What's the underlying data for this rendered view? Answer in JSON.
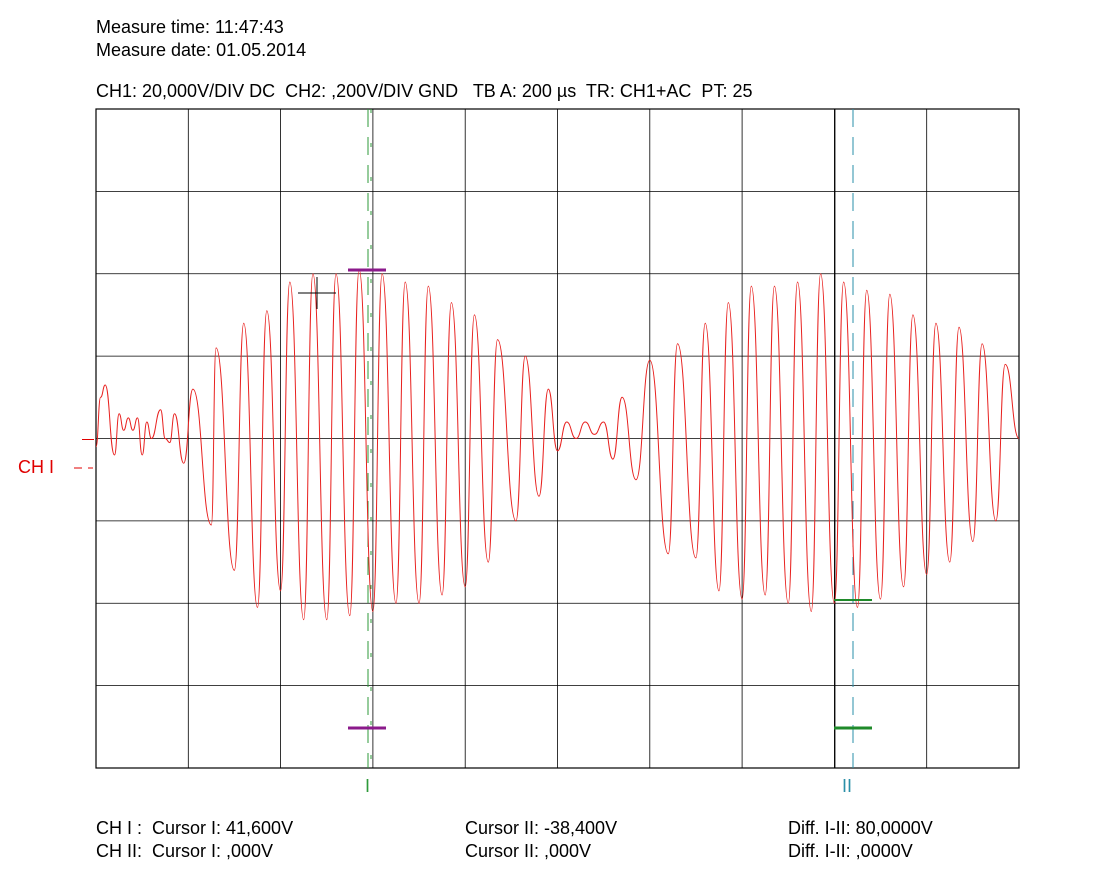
{
  "header": {
    "measure_time": "Measure time: 11:47:43",
    "measure_date": "Measure date: 01.05.2014",
    "settings": "CH1: 20,000V/DIV DC  CH2: ,200V/DIV GND   TB A: 200 µs  TR: CH1+AC  PT: 25"
  },
  "channel_label": "CH I",
  "cursor_marks": {
    "one": "I",
    "two": "II"
  },
  "readouts": {
    "row1_label": "CH I :  Cursor I: 41,600V",
    "row1_c2": "Cursor II: -38,400V",
    "row1_diff": "Diff. I-II: 80,0000V",
    "row2_label": "CH II:  Cursor I: ,000V",
    "row2_c2": "Cursor II: ,000V",
    "row2_diff": "Diff. I-II: ,0000V"
  },
  "colors": {
    "trace": "#e8211f",
    "grid": "#000000",
    "cursor1": "#2e9a3a",
    "cursor2": "#2a8fa8",
    "marker_purple": "#8b1a8b",
    "marker_green": "#1f8a2a",
    "channel_label": "#e00000"
  },
  "chart_data": {
    "type": "line",
    "grid": true,
    "divisions_x": 10,
    "divisions_y": 8,
    "volts_per_div": 20,
    "time_per_div": "200 µs",
    "series": [
      {
        "values": [
          [
            0.0,
            -2
          ],
          [
            0.05,
            10
          ],
          [
            0.1,
            13
          ],
          [
            0.2,
            -4
          ],
          [
            0.25,
            6
          ],
          [
            0.3,
            2
          ],
          [
            0.35,
            5
          ],
          [
            0.4,
            2
          ],
          [
            0.45,
            5
          ],
          [
            0.5,
            -4
          ],
          [
            0.55,
            4
          ],
          [
            0.6,
            0
          ],
          [
            0.7,
            7
          ],
          [
            0.75,
            0
          ],
          [
            0.8,
            -1
          ],
          [
            0.85,
            6
          ],
          [
            0.95,
            -6
          ],
          [
            1.05,
            12
          ],
          [
            1.25,
            -21
          ],
          [
            1.3,
            22
          ],
          [
            1.5,
            -32
          ],
          [
            1.6,
            28
          ],
          [
            1.75,
            -41
          ],
          [
            1.85,
            31
          ],
          [
            2.0,
            -37
          ],
          [
            2.1,
            38
          ],
          [
            2.25,
            -44
          ],
          [
            2.35,
            40
          ],
          [
            2.5,
            -44
          ],
          [
            2.6,
            40
          ],
          [
            2.75,
            -43
          ],
          [
            2.85,
            41
          ],
          [
            3.0,
            -42
          ],
          [
            3.1,
            40
          ],
          [
            3.25,
            -40
          ],
          [
            3.35,
            38
          ],
          [
            3.5,
            -40
          ],
          [
            3.6,
            37
          ],
          [
            3.75,
            -38
          ],
          [
            3.85,
            33
          ],
          [
            4.0,
            -36
          ],
          [
            4.1,
            30
          ],
          [
            4.25,
            -30
          ],
          [
            4.35,
            24
          ],
          [
            4.55,
            -20
          ],
          [
            4.65,
            20
          ],
          [
            4.8,
            -14
          ],
          [
            4.9,
            12
          ],
          [
            5.0,
            -3
          ],
          [
            5.1,
            4
          ],
          [
            5.2,
            0
          ],
          [
            5.3,
            4
          ],
          [
            5.4,
            1
          ],
          [
            5.5,
            4
          ],
          [
            5.6,
            -5
          ],
          [
            5.7,
            10
          ],
          [
            5.85,
            -10
          ],
          [
            6.0,
            19
          ],
          [
            6.2,
            -28
          ],
          [
            6.3,
            23
          ],
          [
            6.5,
            -29
          ],
          [
            6.6,
            28
          ],
          [
            6.75,
            -37
          ],
          [
            6.85,
            33
          ],
          [
            7.0,
            -39
          ],
          [
            7.1,
            37
          ],
          [
            7.25,
            -38
          ],
          [
            7.35,
            37
          ],
          [
            7.5,
            -40
          ],
          [
            7.6,
            38
          ],
          [
            7.75,
            -42
          ],
          [
            7.85,
            40
          ],
          [
            8.0,
            -40
          ],
          [
            8.1,
            38
          ],
          [
            8.25,
            -41
          ],
          [
            8.35,
            36
          ],
          [
            8.5,
            -39
          ],
          [
            8.6,
            35
          ],
          [
            8.75,
            -36
          ],
          [
            8.85,
            30
          ],
          [
            9.0,
            -33
          ],
          [
            9.1,
            28
          ],
          [
            9.25,
            -30
          ],
          [
            9.35,
            27
          ],
          [
            9.5,
            -25
          ],
          [
            9.6,
            23
          ],
          [
            9.75,
            -20
          ],
          [
            9.85,
            18
          ],
          [
            10.0,
            0
          ]
        ]
      }
    ]
  }
}
